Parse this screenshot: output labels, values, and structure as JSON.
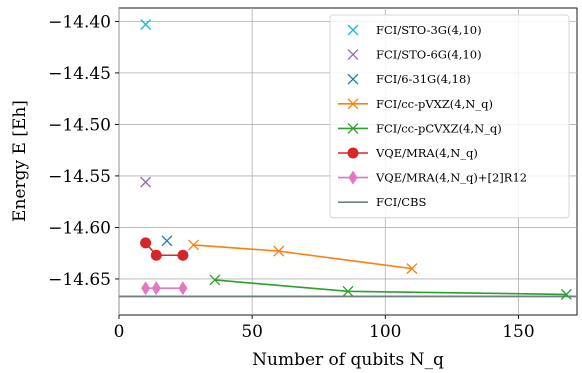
{
  "chart_data": {
    "type": "line",
    "xlabel": "Number of qubits N_q",
    "ylabel": "Energy E [Eh]",
    "xlim": [
      0,
      172
    ],
    "ylim": [
      -14.685,
      -14.387
    ],
    "xticks": [
      0,
      50,
      100,
      150
    ],
    "yticks": [
      -14.4,
      -14.45,
      -14.5,
      -14.55,
      -14.6,
      -14.65
    ],
    "xtick_labels": [
      "0",
      "50",
      "100",
      "150"
    ],
    "ytick_labels": [
      "−14.40",
      "−14.45",
      "−14.50",
      "−14.55",
      "−14.60",
      "−14.65"
    ],
    "grid": true,
    "legend_position": "top-right",
    "series": [
      {
        "name": "FCI/STO-3G(4,10)",
        "color": "#17becf",
        "marker": "x",
        "linestyle": "none",
        "points": [
          [
            10,
            -14.403
          ]
        ]
      },
      {
        "name": "FCI/STO-6G(4,10)",
        "color": "#9467bd",
        "marker": "x",
        "linestyle": "none",
        "points": [
          [
            10,
            -14.556
          ]
        ]
      },
      {
        "name": "FCI/6-31G(4,18)",
        "color": "#1f77b4",
        "marker": "x",
        "linestyle": "none",
        "points": [
          [
            18,
            -14.613
          ]
        ]
      },
      {
        "name": "FCI/cc-pVXZ(4,N_q)",
        "color": "#ff7f0e",
        "marker": "x",
        "linestyle": "solid",
        "points": [
          [
            28,
            -14.617
          ],
          [
            60,
            -14.623
          ],
          [
            110,
            -14.64
          ]
        ]
      },
      {
        "name": "FCI/cc-pCVXZ(4,N_q)",
        "color": "#2ca02c",
        "marker": "x",
        "linestyle": "solid",
        "points": [
          [
            36,
            -14.651
          ],
          [
            86,
            -14.662
          ],
          [
            168,
            -14.665
          ]
        ]
      },
      {
        "name": "VQE/MRA(4,N_q)",
        "color": "#d62728",
        "marker": "o",
        "linestyle": "solid",
        "points": [
          [
            10,
            -14.615
          ],
          [
            14,
            -14.627
          ],
          [
            24,
            -14.627
          ]
        ]
      },
      {
        "name": "VQE/MRA(4,N_q)+[2]R12",
        "color": "#e377c2",
        "marker": "d",
        "linestyle": "solid",
        "points": [
          [
            10,
            -14.659
          ],
          [
            14,
            -14.659
          ],
          [
            24,
            -14.659
          ]
        ]
      },
      {
        "name": "FCI/CBS",
        "color": "#708080",
        "marker": "none",
        "linestyle": "hline",
        "points": [
          [
            0,
            -14.667
          ],
          [
            172,
            -14.667
          ]
        ]
      }
    ]
  }
}
